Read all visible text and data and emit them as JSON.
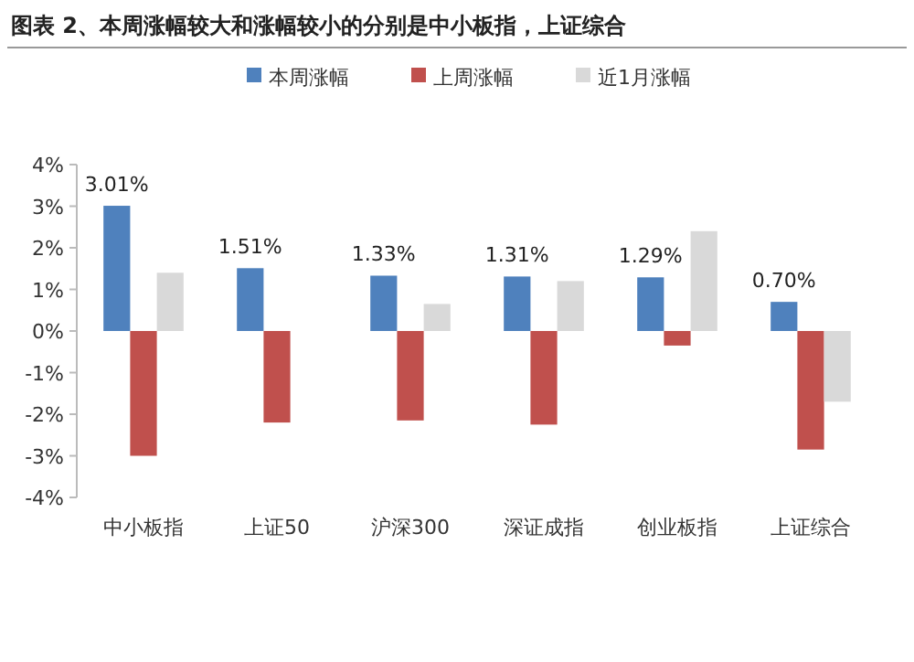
{
  "chart_data": {
    "type": "bar",
    "title": "图表 2、本周涨幅较大和涨幅较小的分别是中小板指，上证综合",
    "categories": [
      "中小板指",
      "上证50",
      "沪深300",
      "深证成指",
      "创业板指",
      "上证综合"
    ],
    "series": [
      {
        "name": "本周涨幅",
        "color": "#4f81bd",
        "values": [
          3.01,
          1.51,
          1.33,
          1.31,
          1.29,
          0.7
        ],
        "value_labels": [
          "3.01%",
          "1.51%",
          "1.33%",
          "1.31%",
          "1.29%",
          "0.70%"
        ]
      },
      {
        "name": "上周涨幅",
        "color": "#c0504d",
        "values": [
          -3.0,
          -2.2,
          -2.15,
          -2.25,
          -0.35,
          -2.85
        ]
      },
      {
        "name": "近1月涨幅",
        "color": "#d9d9d9",
        "values": [
          1.4,
          null,
          0.65,
          1.2,
          2.4,
          -1.7
        ]
      }
    ],
    "ylim": [
      -4,
      4
    ],
    "yticks": [
      {
        "value": -4,
        "label": "-4%"
      },
      {
        "value": -3,
        "label": "-3%"
      },
      {
        "value": -2,
        "label": "-2%"
      },
      {
        "value": -1,
        "label": "-1%"
      },
      {
        "value": 0,
        "label": "0%"
      },
      {
        "value": 1,
        "label": "1%"
      },
      {
        "value": 2,
        "label": "2%"
      },
      {
        "value": 3,
        "label": "3%"
      },
      {
        "value": 4,
        "label": "4%"
      }
    ],
    "grid": false,
    "legend": "top"
  }
}
